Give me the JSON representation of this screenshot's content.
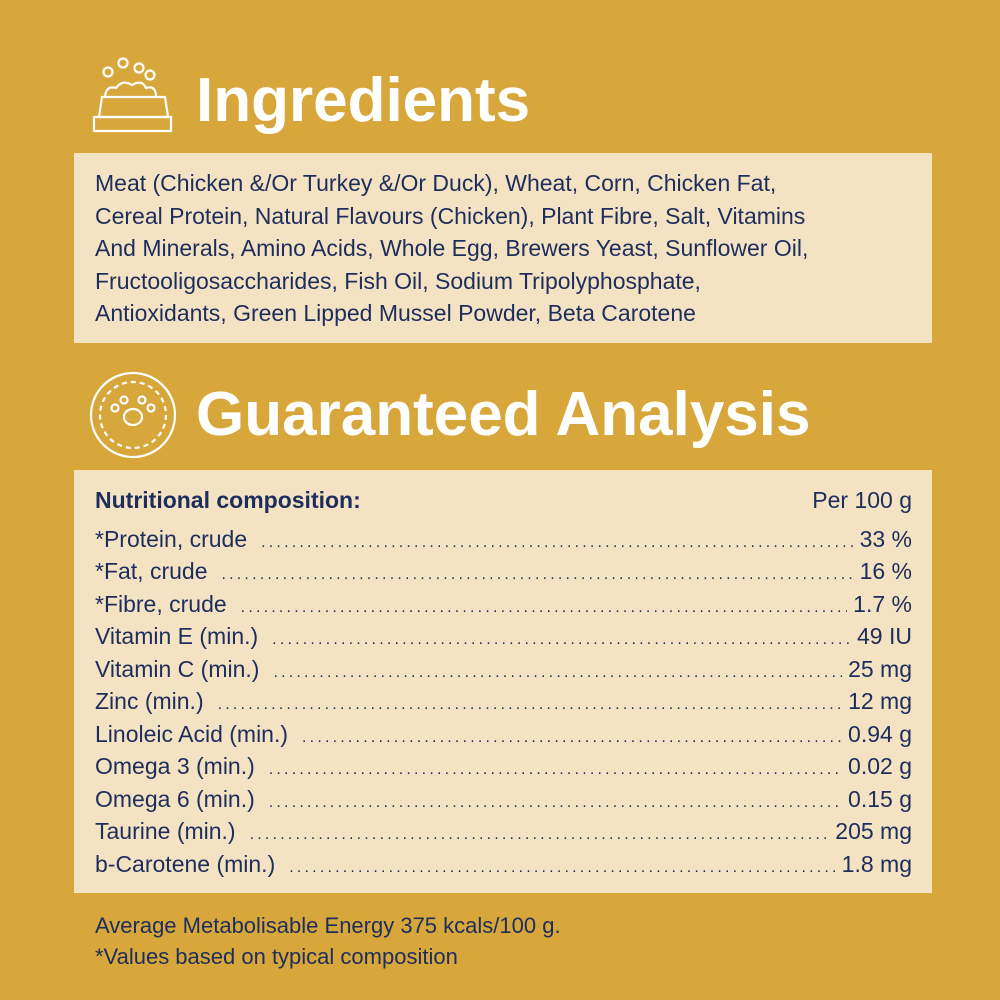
{
  "ingredients": {
    "title": "Ingredients",
    "icon": "food-bowl-icon",
    "lines": [
      "Meat (Chicken &/Or Turkey &/Or Duck), Wheat, Corn, Chicken Fat,",
      "Cereal Protein, Natural Flavours (Chicken), Plant Fibre, Salt, Vitamins",
      "And Minerals, Amino Acids, Whole Egg, Brewers Yeast, Sunflower Oil,",
      "Fructooligosaccharides, Fish Oil, Sodium Tripolyphosphate,",
      "Antioxidants, Green Lipped Mussel Powder, Beta Carotene"
    ]
  },
  "analysis": {
    "title": "Guaranteed Analysis",
    "icon": "paw-badge-icon",
    "header_label": "Nutritional composition:",
    "header_value": "Per 100 g",
    "rows": [
      {
        "label": "*Protein, crude",
        "value": "33 %"
      },
      {
        "label": "*Fat, crude",
        "value": "16 %"
      },
      {
        "label": "*Fibre, crude",
        "value": "1.7 %"
      },
      {
        "label": "Vitamin E (min.)",
        "value": "49 IU"
      },
      {
        "label": "Vitamin C (min.)",
        "value": "25 mg"
      },
      {
        "label": "Zinc (min.)",
        "value": "12 mg"
      },
      {
        "label": "Linoleic Acid (min.)",
        "value": "0.94 g"
      },
      {
        "label": "Omega 3 (min.)",
        "value": "0.02 g"
      },
      {
        "label": "Omega 6 (min.)",
        "value": "0.15 g"
      },
      {
        "label": "Taurine (min.)",
        "value": "205 mg"
      },
      {
        "label": "b-Carotene (min.)",
        "value": "1.8 mg"
      }
    ]
  },
  "footer": {
    "energy": "Average Metabolisable Energy 375 kcals/100 g.",
    "note": "*Values based on typical composition"
  },
  "colors": {
    "background": "#D8A73B",
    "panel": "#F3E3C3",
    "text": "#1D2D5C",
    "heading": "#FFFFFF"
  }
}
